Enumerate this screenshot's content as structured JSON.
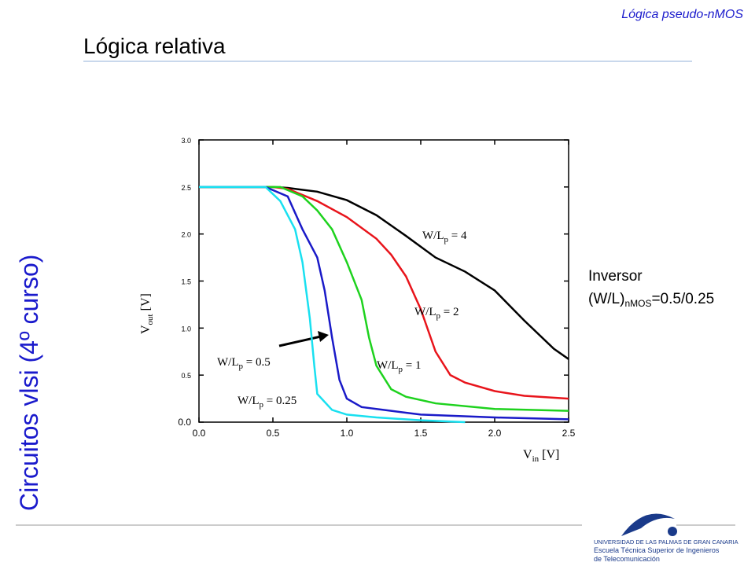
{
  "header": {
    "section": "Lógica pseudo-nMOS",
    "title": "Lógica relativa",
    "side": "Circuitos vlsi (4º curso)"
  },
  "note": [
    "Inversor",
    "(W/L)nMOS=0.5/0.25"
  ],
  "logo": [
    "UNIVERSIDAD DE LAS PALMAS DE GRAN CANARIA",
    "Escuela Técnica Superior de Ingenieros",
    "de Telecomunicación"
  ],
  "chart_data": {
    "type": "line",
    "xlabel": "Vin [V]",
    "ylabel": "Vout [V]",
    "xlim": [
      0,
      2.5
    ],
    "ylim": [
      0,
      3
    ],
    "xticks": [
      {
        "value": 0,
        "label": "0.0"
      },
      {
        "value": 0.5,
        "label": "0.5"
      },
      {
        "value": 1,
        "label": "1.0"
      },
      {
        "value": 1.5,
        "label": "1.5"
      },
      {
        "value": 2,
        "label": "2.0"
      },
      {
        "value": 2.5,
        "label": "2.5"
      }
    ],
    "yticks": [
      {
        "value": 0,
        "label": "0.0"
      },
      {
        "value": 0.5,
        "label": "0.5"
      },
      {
        "value": 1,
        "label": "1.0"
      },
      {
        "value": 1.5,
        "label": "1.5"
      },
      {
        "value": 2,
        "label": "2.0"
      },
      {
        "value": 2.5,
        "label": "2.5"
      },
      {
        "value": 3,
        "label": "3.0"
      }
    ],
    "series": [
      {
        "name": "W/Lp = 4",
        "color": "#000000",
        "x": [
          0,
          0.5,
          0.6,
          0.8,
          1.0,
          1.2,
          1.4,
          1.6,
          1.8,
          2.0,
          2.2,
          2.4,
          2.5
        ],
        "values": [
          2.5,
          2.5,
          2.49,
          2.45,
          2.36,
          2.2,
          1.98,
          1.75,
          1.6,
          1.4,
          1.08,
          0.78,
          0.67
        ]
      },
      {
        "name": "W/Lp = 2",
        "color": "#e8141b",
        "x": [
          0,
          0.5,
          0.6,
          0.8,
          1.0,
          1.2,
          1.3,
          1.4,
          1.5,
          1.6,
          1.7,
          1.8,
          2.0,
          2.2,
          2.5
        ],
        "values": [
          2.5,
          2.5,
          2.48,
          2.35,
          2.18,
          1.95,
          1.78,
          1.55,
          1.2,
          0.75,
          0.5,
          0.42,
          0.33,
          0.28,
          0.25
        ]
      },
      {
        "name": "W/Lp = 1",
        "color": "#1ed21e",
        "x": [
          0,
          0.55,
          0.7,
          0.8,
          0.9,
          1.0,
          1.1,
          1.15,
          1.2,
          1.3,
          1.4,
          1.6,
          2.0,
          2.5
        ],
        "values": [
          2.5,
          2.5,
          2.4,
          2.25,
          2.05,
          1.7,
          1.3,
          0.9,
          0.6,
          0.35,
          0.27,
          0.2,
          0.14,
          0.12
        ]
      },
      {
        "name": "W/Lp = 0.5",
        "color": "#1a1ac8",
        "x": [
          0,
          0.45,
          0.6,
          0.7,
          0.8,
          0.85,
          0.9,
          0.95,
          1.0,
          1.1,
          1.3,
          1.5,
          2.0,
          2.5
        ],
        "values": [
          2.5,
          2.5,
          2.4,
          2.05,
          1.75,
          1.4,
          0.9,
          0.45,
          0.25,
          0.16,
          0.12,
          0.08,
          0.05,
          0.03
        ]
      },
      {
        "name": "W/Lp = 0.25",
        "color": "#19e0f0",
        "x": [
          0,
          0.45,
          0.55,
          0.65,
          0.7,
          0.75,
          0.78,
          0.8,
          0.9,
          1.0,
          1.2,
          1.5,
          1.8
        ],
        "values": [
          2.5,
          2.5,
          2.35,
          2.05,
          1.7,
          1.1,
          0.6,
          0.3,
          0.13,
          0.08,
          0.05,
          0.02,
          0
        ]
      }
    ]
  }
}
